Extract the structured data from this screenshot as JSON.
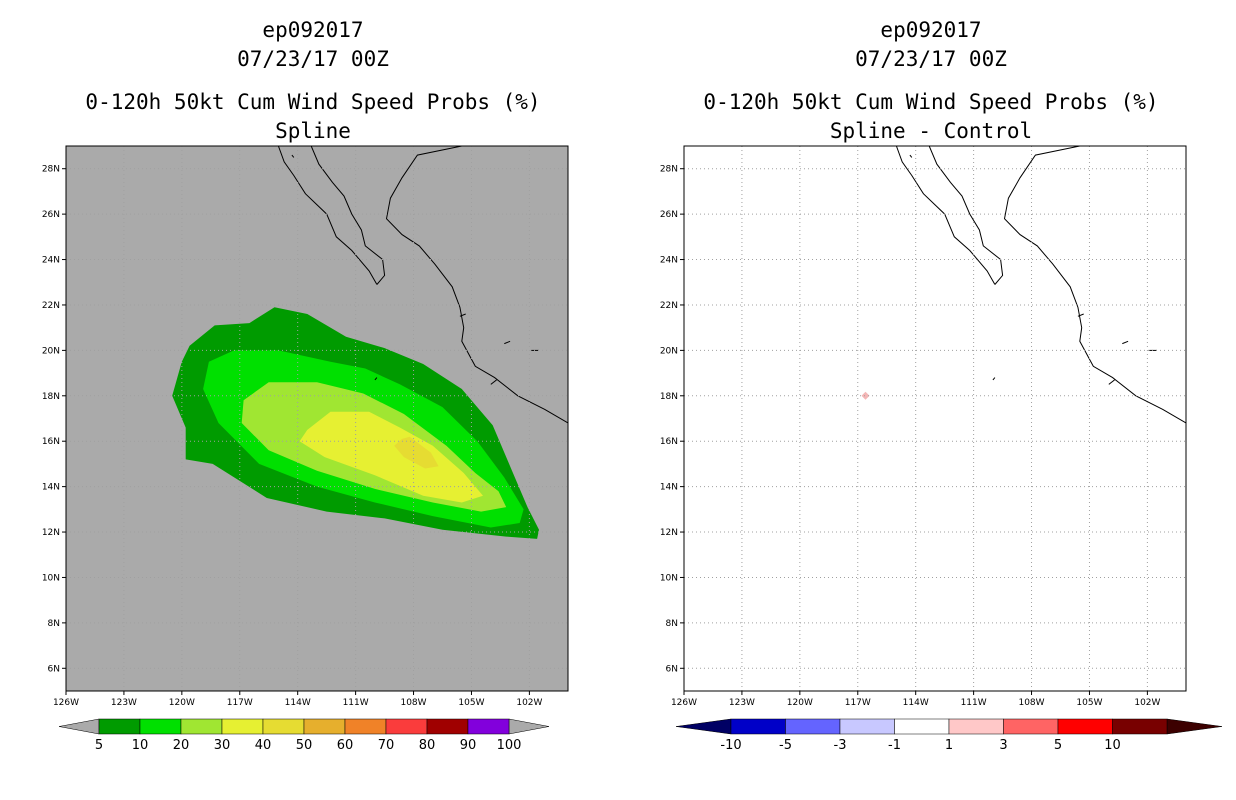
{
  "left": {
    "line1": "ep092017",
    "line2": "07/23/17 00Z",
    "line3": "0-120h 50kt Cum Wind Speed Probs (%)",
    "line4": "Spline"
  },
  "right": {
    "line1": "ep092017",
    "line2": "07/23/17 00Z",
    "line3": "0-120h 50kt Cum Wind Speed Probs (%)",
    "line4": "Spline - Control"
  },
  "colors": {
    "background": "#ffffff",
    "map_gray": "#aaaaaa",
    "land_line": "#000000",
    "grid_dots": "#a0a0a0",
    "prob_levels": [
      "#009b00",
      "#00e000",
      "#a0e632",
      "#e6f032",
      "#e6dc32",
      "#e6af2d",
      "#f08228",
      "#fa3c3c",
      "#a00000",
      "#8200dc"
    ],
    "diff_levels": [
      "#0000c8",
      "#6464ff",
      "#c8c8ff",
      "#ffffff",
      "#ffc8c8",
      "#ff6464",
      "#ff0000",
      "#780000"
    ]
  },
  "chart_data": [
    {
      "type": "heatmap",
      "title": "0-120h 50kt Cum Wind Speed Probs (%) - Spline",
      "x_ticks": [
        "126W",
        "123W",
        "120W",
        "117W",
        "114W",
        "111W",
        "108W",
        "105W",
        "102W"
      ],
      "x_values": [
        -126,
        -123,
        -120,
        -117,
        -114,
        -111,
        -108,
        -105,
        -102
      ],
      "y_ticks": [
        "28N",
        "26N",
        "24N",
        "22N",
        "20N",
        "18N",
        "16N",
        "14N",
        "12N",
        "10N",
        "8N",
        "6N"
      ],
      "y_values": [
        28,
        26,
        24,
        22,
        20,
        18,
        16,
        14,
        12,
        10,
        8,
        6
      ],
      "xlim": [
        -126,
        -100
      ],
      "ylim": [
        5,
        29
      ],
      "grid": true,
      "contours": [
        {
          "level": 5,
          "polygon": [
            [
              -119.6,
              20.2
            ],
            [
              -118.3,
              21.1
            ],
            [
              -116.5,
              21.2
            ],
            [
              -115.2,
              21.9
            ],
            [
              -113.5,
              21.6
            ],
            [
              -111.5,
              20.6
            ],
            [
              -109.5,
              20.1
            ],
            [
              -107.5,
              19.4
            ],
            [
              -105.5,
              18.3
            ],
            [
              -103.9,
              16.7
            ],
            [
              -102.9,
              14.7
            ],
            [
              -102.1,
              13.1
            ],
            [
              -101.5,
              12.1
            ],
            [
              -101.6,
              11.7
            ],
            [
              -103.2,
              11.8
            ],
            [
              -106.5,
              12.1
            ],
            [
              -109.5,
              12.6
            ],
            [
              -112.5,
              12.9
            ],
            [
              -115.6,
              13.5
            ],
            [
              -118.4,
              15.0
            ],
            [
              -119.8,
              15.2
            ],
            [
              -119.8,
              16.6
            ],
            [
              -120.5,
              18.0
            ],
            [
              -120.0,
              19.5
            ]
          ]
        },
        {
          "level": 10,
          "polygon": [
            [
              -118.6,
              19.5
            ],
            [
              -117.3,
              20.0
            ],
            [
              -115.0,
              20.0
            ],
            [
              -112.3,
              19.5
            ],
            [
              -110.5,
              19.2
            ],
            [
              -108.7,
              18.5
            ],
            [
              -106.5,
              17.5
            ],
            [
              -104.7,
              16.0
            ],
            [
              -103.3,
              14.4
            ],
            [
              -102.3,
              13.0
            ],
            [
              -102.5,
              12.4
            ],
            [
              -104.0,
              12.2
            ],
            [
              -107.0,
              12.7
            ],
            [
              -110.0,
              13.3
            ],
            [
              -113.0,
              14.0
            ],
            [
              -116.0,
              15.0
            ],
            [
              -118.1,
              16.8
            ],
            [
              -118.9,
              18.3
            ]
          ]
        },
        {
          "level": 20,
          "polygon": [
            [
              -116.8,
              17.8
            ],
            [
              -115.5,
              18.6
            ],
            [
              -113.0,
              18.6
            ],
            [
              -110.6,
              18.1
            ],
            [
              -108.5,
              17.2
            ],
            [
              -106.3,
              15.8
            ],
            [
              -104.8,
              14.6
            ],
            [
              -103.6,
              13.8
            ],
            [
              -103.2,
              13.1
            ],
            [
              -104.5,
              12.9
            ],
            [
              -107.0,
              13.3
            ],
            [
              -110.0,
              13.9
            ],
            [
              -113.0,
              14.7
            ],
            [
              -115.5,
              15.6
            ],
            [
              -116.9,
              16.8
            ]
          ]
        },
        {
          "level": 30,
          "polygon": [
            [
              -113.5,
              16.5
            ],
            [
              -112.3,
              17.3
            ],
            [
              -110.3,
              17.3
            ],
            [
              -108.7,
              16.6
            ],
            [
              -107.0,
              15.8
            ],
            [
              -105.4,
              14.6
            ],
            [
              -104.4,
              13.6
            ],
            [
              -105.5,
              13.3
            ],
            [
              -107.5,
              13.6
            ],
            [
              -110.0,
              14.5
            ],
            [
              -112.6,
              15.3
            ],
            [
              -113.9,
              16.0
            ]
          ]
        },
        {
          "level": 40,
          "polygon": [
            [
              -108.6,
              16.1
            ],
            [
              -108.2,
              16.2
            ],
            [
              -107.1,
              15.5
            ],
            [
              -106.7,
              14.9
            ],
            [
              -107.4,
              14.8
            ],
            [
              -108.5,
              15.3
            ],
            [
              -109.0,
              15.8
            ]
          ]
        }
      ],
      "colorbar": {
        "levels": [
          "5",
          "10",
          "20",
          "30",
          "40",
          "50",
          "60",
          "70",
          "80",
          "90",
          "100"
        ],
        "colors": [
          "#009b00",
          "#00e000",
          "#a0e632",
          "#e6f032",
          "#e6dc32",
          "#e6af2d",
          "#f08228",
          "#fa3c3c",
          "#a00000",
          "#8200dc"
        ]
      }
    },
    {
      "type": "heatmap",
      "title": "0-120h 50kt Cum Wind Speed Probs (%) - Spline - Control",
      "x_ticks": [
        "126W",
        "123W",
        "120W",
        "117W",
        "114W",
        "111W",
        "108W",
        "105W",
        "102W"
      ],
      "x_values": [
        -126,
        -123,
        -120,
        -117,
        -114,
        -111,
        -108,
        -105,
        -102
      ],
      "y_ticks": [
        "28N",
        "26N",
        "24N",
        "22N",
        "20N",
        "18N",
        "16N",
        "14N",
        "12N",
        "10N",
        "8N",
        "6N"
      ],
      "y_values": [
        28,
        26,
        24,
        22,
        20,
        18,
        16,
        14,
        12,
        10,
        8,
        6
      ],
      "xlim": [
        -126,
        -100
      ],
      "ylim": [
        5,
        29
      ],
      "grid": true,
      "points": [
        {
          "lon": -116.6,
          "lat": 18.0,
          "value": 1
        }
      ],
      "colorbar": {
        "levels": [
          "-10",
          "-5",
          "-3",
          "-1",
          "1",
          "3",
          "5",
          "10"
        ],
        "colors": [
          "#0000c8",
          "#6464ff",
          "#c8c8ff",
          "#ffffff",
          "#ffc8c8",
          "#ff6464",
          "#ff0000",
          "#780000"
        ]
      }
    }
  ]
}
